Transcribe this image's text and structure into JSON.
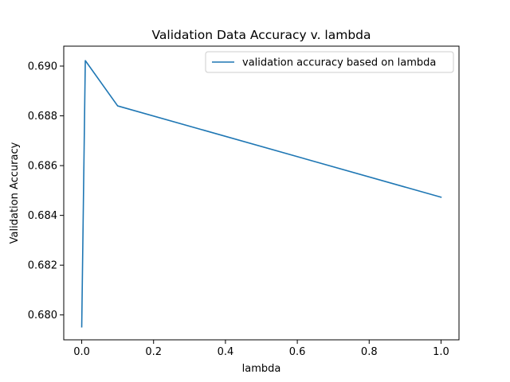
{
  "chart_data": {
    "type": "line",
    "title": "Validation Data Accuracy v. lambda",
    "xlabel": "lambda",
    "ylabel": "Validation Accuracy",
    "xlim": [
      -0.05,
      1.05
    ],
    "ylim": [
      0.679,
      0.6908
    ],
    "xticks": [
      0.0,
      0.2,
      0.4,
      0.6,
      0.8,
      1.0
    ],
    "xtick_labels": [
      "0.0",
      "0.2",
      "0.4",
      "0.6",
      "0.8",
      "1.0"
    ],
    "yticks": [
      0.68,
      0.682,
      0.684,
      0.686,
      0.688,
      0.69
    ],
    "ytick_labels": [
      "0.680",
      "0.682",
      "0.684",
      "0.686",
      "0.688",
      "0.690"
    ],
    "grid": false,
    "legend_position": "top-right",
    "series": [
      {
        "name": "validation accuracy based on lambda",
        "color": "#1f77b4",
        "x": [
          0.0,
          0.01,
          0.1,
          1.0
        ],
        "y": [
          0.67952,
          0.69022,
          0.6884,
          0.68473
        ]
      }
    ]
  }
}
